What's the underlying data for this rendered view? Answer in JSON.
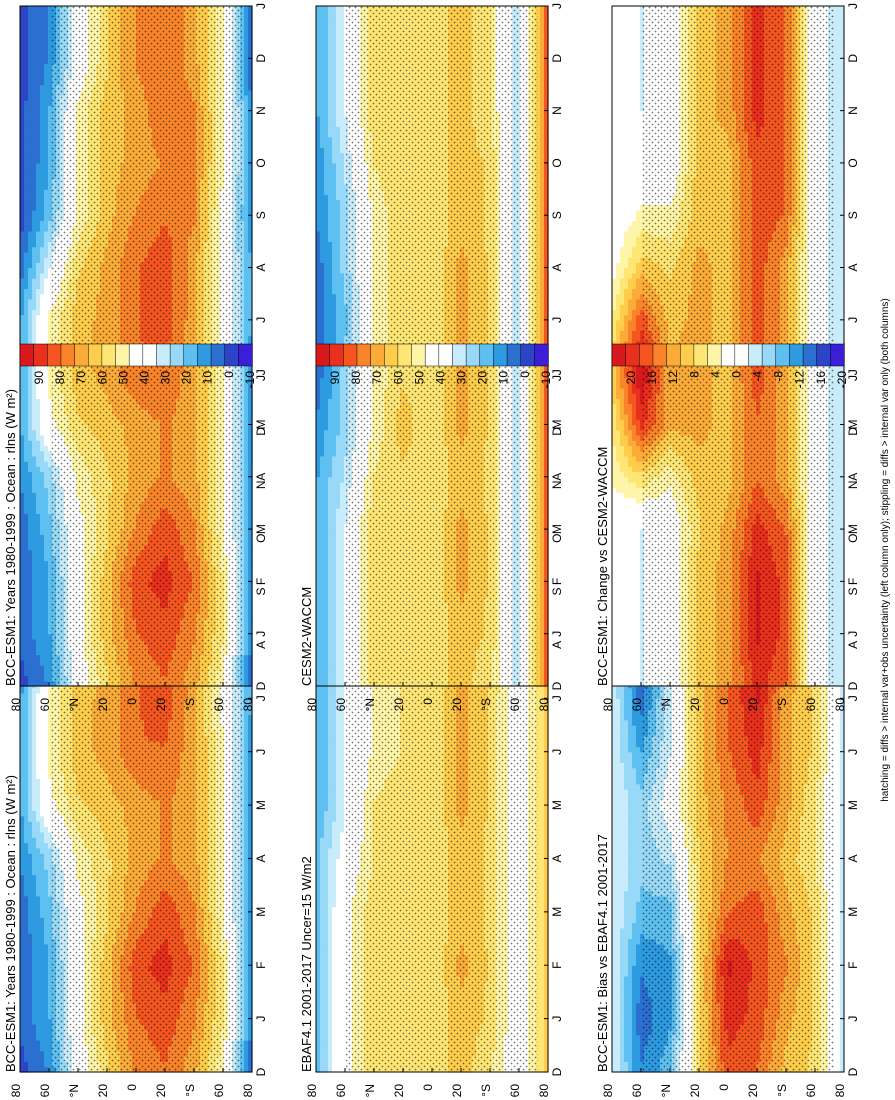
{
  "footnote": "hatching = diffs > internal var+obs uncertainty (left column only); stippling = diffs > internal var only (both columns)",
  "colorbars": {
    "abs": {
      "labels": [
        "90",
        "80",
        "70",
        "60",
        "50",
        "40",
        "30",
        "20",
        "10",
        "0",
        "-10"
      ],
      "colors": [
        "#d7191c",
        "#e9301c",
        "#f5561f",
        "#f9842a",
        "#fbac38",
        "#fdcd4b",
        "#fee674",
        "#fff5a8",
        "#ffffff",
        "#ffffff",
        "#c9ecfa",
        "#97d9f6",
        "#5ec0f0",
        "#2e9ae0",
        "#2b6fd0",
        "#2c44c7",
        "#3a1fd6"
      ]
    },
    "diff": {
      "labels": [
        "20",
        "16",
        "12",
        "8",
        "4",
        "0",
        "-4",
        "-8",
        "-12",
        "-16",
        "-20"
      ],
      "colors": [
        "#d7191c",
        "#e9301c",
        "#f5561f",
        "#f9842a",
        "#fbac38",
        "#fdcd4b",
        "#fee674",
        "#fff5a8",
        "#ffffff",
        "#ffffff",
        "#c9ecfa",
        "#97d9f6",
        "#5ec0f0",
        "#2e9ae0",
        "#2b6fd0",
        "#2c44c7",
        "#3a1fd6"
      ]
    }
  },
  "chart_data": [
    {
      "type": "heatmap",
      "id": "bcc-1980-left",
      "title": "BCC-ESM1: Years 1980-1999 : Ocean : rlns (W m²)",
      "colorbar": "abs",
      "xlabels": [
        "D",
        "J",
        "F",
        "M",
        "A",
        "M",
        "J",
        "J",
        "A",
        "S",
        "O",
        "N",
        "D",
        "J"
      ],
      "ylabels": [
        "80",
        "60",
        "°N",
        "20",
        "0",
        "20",
        "°S",
        "60",
        "80"
      ],
      "latitudes": [
        -80,
        -60,
        -40,
        -20,
        0,
        20,
        40,
        60,
        80
      ],
      "values": [
        [
          -5,
          45,
          65,
          75,
          70,
          55,
          35,
          5,
          -5
        ],
        [
          5,
          50,
          70,
          80,
          75,
          60,
          40,
          10,
          0
        ],
        [
          5,
          50,
          75,
          85,
          80,
          60,
          40,
          10,
          0
        ],
        [
          5,
          45,
          70,
          80,
          70,
          55,
          40,
          15,
          0
        ],
        [
          5,
          45,
          65,
          70,
          65,
          55,
          45,
          20,
          5
        ],
        [
          5,
          45,
          65,
          70,
          65,
          60,
          55,
          40,
          10
        ],
        [
          5,
          45,
          65,
          75,
          75,
          65,
          60,
          45,
          10
        ],
        [
          10,
          40,
          65,
          80,
          75,
          65,
          60,
          45,
          10
        ],
        [
          10,
          40,
          65,
          80,
          75,
          65,
          55,
          30,
          0
        ],
        [
          5,
          40,
          70,
          75,
          70,
          60,
          45,
          15,
          -5
        ],
        [
          5,
          45,
          70,
          70,
          65,
          60,
          45,
          10,
          -5
        ],
        [
          5,
          45,
          70,
          75,
          65,
          60,
          45,
          10,
          -5
        ],
        [
          -5,
          45,
          65,
          75,
          70,
          55,
          35,
          5,
          -5
        ],
        [
          -5,
          45,
          65,
          75,
          70,
          55,
          35,
          5,
          -5
        ]
      ]
    },
    {
      "type": "heatmap",
      "id": "ebaf-obs",
      "title": "EBAF4.1 2001-2017 Uncer=15 W/m2",
      "colorbar": "abs",
      "xlabels": [
        "D",
        "J",
        "F",
        "M",
        "A",
        "M",
        "J",
        "J",
        "A",
        "S",
        "O",
        "N",
        "D",
        "J"
      ],
      "ylabels": [
        "80",
        "60",
        "°N",
        "20",
        "0",
        "20",
        "°S",
        "60",
        "80"
      ],
      "latitudes": [
        -80,
        -60,
        -40,
        -20,
        0,
        20,
        40,
        60,
        80
      ],
      "values": [
        [
          60,
          35,
          50,
          60,
          50,
          50,
          55,
          40,
          15
        ],
        [
          60,
          35,
          55,
          60,
          50,
          55,
          55,
          40,
          15
        ],
        [
          60,
          35,
          55,
          65,
          50,
          55,
          55,
          40,
          15
        ],
        [
          60,
          35,
          55,
          60,
          50,
          55,
          55,
          40,
          15
        ],
        [
          60,
          35,
          55,
          60,
          50,
          55,
          50,
          35,
          15
        ],
        [
          60,
          35,
          55,
          65,
          50,
          55,
          50,
          30,
          10
        ],
        [
          60,
          35,
          55,
          65,
          50,
          50,
          45,
          30,
          10
        ],
        [
          60,
          35,
          55,
          65,
          50,
          50,
          45,
          30,
          10
        ],
        [
          60,
          35,
          60,
          65,
          50,
          50,
          45,
          30,
          10
        ],
        [
          60,
          35,
          55,
          60,
          50,
          55,
          50,
          30,
          10
        ],
        [
          60,
          35,
          55,
          60,
          50,
          55,
          50,
          35,
          15
        ],
        [
          60,
          35,
          55,
          60,
          50,
          55,
          55,
          35,
          15
        ],
        [
          60,
          35,
          50,
          60,
          50,
          50,
          55,
          40,
          15
        ],
        [
          60,
          35,
          50,
          60,
          50,
          50,
          55,
          40,
          15
        ]
      ]
    },
    {
      "type": "heatmap",
      "id": "bcc-bias",
      "title": "BCC-ESM1: Bias vs EBAF4.1 2001-2017",
      "colorbar": "diff",
      "xlabels": [
        "D",
        "J",
        "F",
        "M",
        "A",
        "M",
        "J",
        "J",
        "A",
        "S",
        "O",
        "N",
        "D",
        "J"
      ],
      "ylabels": [
        "80",
        "60",
        "°N",
        "20",
        "0",
        "20",
        "°S",
        "60",
        "80"
      ],
      "latitudes": [
        -80,
        -60,
        -40,
        -20,
        0,
        20,
        40,
        60,
        80
      ],
      "values": [
        [
          -5,
          6,
          8,
          14,
          16,
          6,
          -10,
          -14,
          -4
        ],
        [
          -5,
          6,
          10,
          16,
          18,
          6,
          -12,
          -16,
          -4
        ],
        [
          -5,
          6,
          12,
          16,
          20,
          6,
          -12,
          -14,
          -4
        ],
        [
          -5,
          6,
          10,
          16,
          14,
          6,
          -10,
          -10,
          -4
        ],
        [
          -5,
          4,
          8,
          12,
          12,
          6,
          -6,
          -8,
          -4
        ],
        [
          -5,
          4,
          10,
          16,
          12,
          8,
          -2,
          -8,
          -4
        ],
        [
          -5,
          6,
          10,
          18,
          14,
          8,
          -4,
          -12,
          -4
        ],
        [
          -5,
          6,
          10,
          20,
          14,
          8,
          -4,
          -16,
          -4
        ],
        [
          -5,
          6,
          12,
          20,
          14,
          8,
          -6,
          -18,
          -4
        ],
        [
          -5,
          6,
          12,
          16,
          14,
          6,
          -8,
          -16,
          -4
        ],
        [
          -5,
          6,
          10,
          14,
          12,
          6,
          -8,
          -14,
          -4
        ],
        [
          -5,
          6,
          10,
          14,
          12,
          6,
          -10,
          -14,
          -4
        ],
        [
          -5,
          6,
          8,
          14,
          16,
          6,
          -10,
          -14,
          -4
        ],
        [
          -5,
          6,
          8,
          14,
          16,
          6,
          -10,
          -14,
          -4
        ]
      ]
    },
    {
      "type": "heatmap",
      "id": "bcc-1980-right",
      "title": "BCC-ESM1: Years 1980-1999 : Ocean : rlns (W m²)",
      "colorbar": "abs",
      "xlabels": [
        "D",
        "J",
        "F",
        "M",
        "A",
        "M",
        "J",
        "J",
        "A",
        "S",
        "O",
        "N",
        "D",
        "J"
      ],
      "ylabels": [
        "80",
        "60",
        "°N",
        "20",
        "0",
        "20",
        "°S",
        "60",
        "80"
      ],
      "latitudes": [
        -80,
        -60,
        -40,
        -20,
        0,
        20,
        40,
        60,
        80
      ],
      "values": [
        [
          -5,
          45,
          65,
          75,
          70,
          55,
          35,
          5,
          -5
        ],
        [
          5,
          50,
          70,
          80,
          75,
          60,
          40,
          10,
          0
        ],
        [
          5,
          50,
          75,
          85,
          80,
          60,
          40,
          10,
          0
        ],
        [
          5,
          45,
          70,
          80,
          70,
          55,
          40,
          15,
          0
        ],
        [
          5,
          45,
          65,
          70,
          65,
          55,
          45,
          20,
          5
        ],
        [
          5,
          45,
          65,
          70,
          65,
          60,
          55,
          40,
          10
        ],
        [
          5,
          45,
          65,
          75,
          75,
          65,
          60,
          45,
          10
        ],
        [
          10,
          40,
          65,
          80,
          75,
          65,
          60,
          45,
          10
        ],
        [
          10,
          40,
          65,
          80,
          75,
          65,
          55,
          30,
          0
        ],
        [
          5,
          40,
          70,
          75,
          70,
          60,
          45,
          15,
          -5
        ],
        [
          5,
          45,
          70,
          70,
          65,
          60,
          45,
          10,
          -5
        ],
        [
          5,
          45,
          70,
          75,
          65,
          60,
          45,
          10,
          -5
        ],
        [
          -5,
          45,
          65,
          75,
          70,
          55,
          35,
          5,
          -5
        ],
        [
          -5,
          45,
          65,
          75,
          70,
          55,
          35,
          5,
          -5
        ]
      ]
    },
    {
      "type": "heatmap",
      "id": "cesm2-waccm",
      "title": "CESM2-WACCM",
      "colorbar": "abs",
      "xlabels": [
        "D",
        "J",
        "F",
        "M",
        "A",
        "M",
        "J",
        "J",
        "A",
        "S",
        "O",
        "N",
        "D",
        "J"
      ],
      "ylabels": [
        "80",
        "60",
        "°N",
        "20",
        "0",
        "20",
        "°S",
        "60",
        "80"
      ],
      "latitudes": [
        -80,
        -60,
        -40,
        -20,
        0,
        20,
        40,
        60,
        80
      ],
      "values": [
        [
          80,
          25,
          50,
          60,
          50,
          55,
          55,
          30,
          10
        ],
        [
          80,
          25,
          55,
          60,
          50,
          55,
          55,
          30,
          10
        ],
        [
          80,
          25,
          55,
          65,
          50,
          55,
          55,
          30,
          10
        ],
        [
          80,
          25,
          55,
          65,
          50,
          55,
          55,
          30,
          10
        ],
        [
          80,
          25,
          55,
          60,
          50,
          55,
          50,
          25,
          10
        ],
        [
          80,
          25,
          55,
          65,
          50,
          60,
          45,
          20,
          5
        ],
        [
          80,
          25,
          55,
          65,
          50,
          55,
          45,
          20,
          0
        ],
        [
          80,
          25,
          55,
          65,
          50,
          55,
          45,
          15,
          0
        ],
        [
          80,
          25,
          55,
          65,
          50,
          55,
          45,
          20,
          0
        ],
        [
          80,
          25,
          55,
          60,
          50,
          55,
          45,
          20,
          5
        ],
        [
          80,
          25,
          55,
          60,
          50,
          55,
          50,
          25,
          5
        ],
        [
          80,
          25,
          50,
          60,
          50,
          55,
          55,
          30,
          10
        ],
        [
          80,
          25,
          50,
          60,
          50,
          55,
          55,
          30,
          10
        ],
        [
          80,
          25,
          50,
          60,
          50,
          55,
          55,
          30,
          10
        ]
      ]
    },
    {
      "type": "heatmap",
      "id": "bcc-change",
      "title": "BCC-ESM1: Change vs CESM2-WACCM",
      "colorbar": "diff",
      "xlabels": [
        "D",
        "J",
        "F",
        "M",
        "A",
        "M",
        "J",
        "J",
        "A",
        "S",
        "O",
        "N",
        "D",
        "J"
      ],
      "ylabels": [
        "80",
        "60",
        "°N",
        "20",
        "0",
        "20",
        "°S",
        "60",
        "80"
      ],
      "latitudes": [
        -80,
        -60,
        -40,
        -20,
        0,
        20,
        40,
        60,
        80
      ],
      "values": [
        [
          -6,
          -2,
          14,
          18,
          10,
          8,
          -2,
          -4,
          -2
        ],
        [
          -6,
          -2,
          16,
          20,
          10,
          8,
          -2,
          -4,
          -2
        ],
        [
          -6,
          -2,
          16,
          20,
          10,
          8,
          -2,
          -4,
          -2
        ],
        [
          -6,
          -2,
          14,
          18,
          10,
          6,
          -2,
          -4,
          -2
        ],
        [
          -6,
          -2,
          10,
          14,
          8,
          8,
          2,
          6,
          2
        ],
        [
          -6,
          -2,
          10,
          14,
          8,
          10,
          10,
          18,
          4
        ],
        [
          -6,
          -2,
          10,
          16,
          8,
          10,
          10,
          22,
          8
        ],
        [
          -6,
          -2,
          10,
          16,
          8,
          10,
          8,
          16,
          4
        ],
        [
          -6,
          -2,
          10,
          16,
          8,
          10,
          6,
          8,
          0
        ],
        [
          -6,
          -2,
          14,
          16,
          8,
          8,
          2,
          2,
          -2
        ],
        [
          -6,
          -2,
          14,
          16,
          8,
          8,
          -2,
          -2,
          -2
        ],
        [
          -6,
          -2,
          14,
          18,
          10,
          8,
          -2,
          -4,
          -2
        ],
        [
          -6,
          -2,
          14,
          18,
          10,
          8,
          -2,
          -4,
          -2
        ],
        [
          -6,
          -2,
          14,
          18,
          10,
          8,
          -2,
          -4,
          -2
        ]
      ]
    }
  ]
}
